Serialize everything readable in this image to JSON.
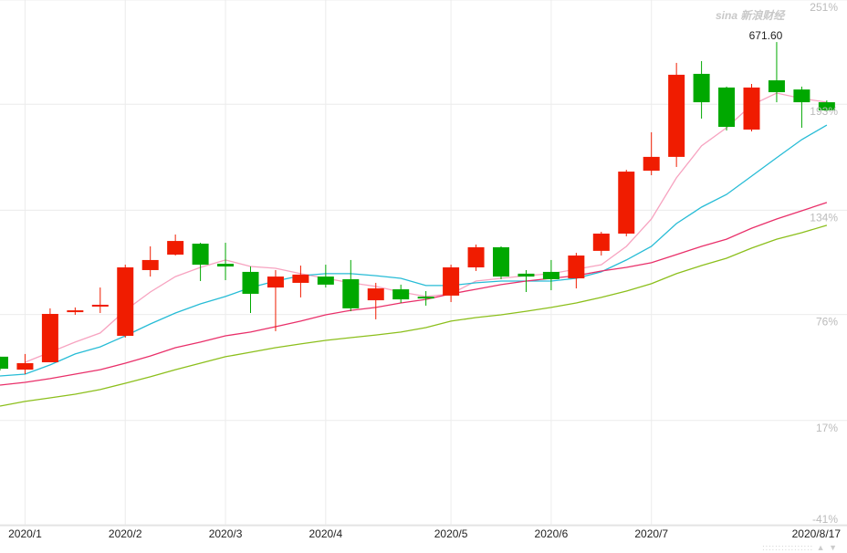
{
  "watermark": "sina 新浪财经",
  "nav_controls": {
    "up": "▲",
    "down": "▼"
  },
  "chart_data": {
    "type": "candlestick",
    "title": "",
    "ylabel": "",
    "ylim": [
      -41,
      251
    ],
    "y_ticks": [
      "251%",
      "193%",
      "134%",
      "76%",
      "17%",
      "-41%"
    ],
    "y_tick_values": [
      251,
      193,
      134,
      76,
      17,
      -41
    ],
    "x_ticks": [
      {
        "label": "2020/1",
        "index": 1
      },
      {
        "label": "2020/2",
        "index": 5
      },
      {
        "label": "2020/3",
        "index": 9
      },
      {
        "label": "2020/4",
        "index": 13
      },
      {
        "label": "2020/5",
        "index": 18
      },
      {
        "label": "2020/6",
        "index": 22
      },
      {
        "label": "2020/7",
        "index": 26
      },
      {
        "label": "2020/8/17",
        "index": 33
      }
    ],
    "colors": {
      "up": "#f01c00",
      "down": "#00a800",
      "ma5": "#f7a3c0",
      "ma10": "#27bcd6",
      "ma20": "#e9306a",
      "ma30": "#8cbf1c",
      "grid": "#ececec"
    },
    "annotation": {
      "text": "671.60",
      "index": 31
    },
    "candles": [
      [
        52.5,
        45.8,
        52.5,
        44.8
      ],
      [
        45.3,
        48.9,
        54.0,
        42.8
      ],
      [
        49.4,
        76.3,
        79.4,
        49.4
      ],
      [
        77.3,
        78.3,
        79.9,
        75.8
      ],
      [
        80.4,
        81.4,
        91.0,
        76.8
      ],
      [
        64.1,
        102.2,
        103.7,
        63.1
      ],
      [
        100.7,
        106.3,
        113.9,
        97.1
      ],
      [
        109.3,
        116.9,
        120.5,
        108.8
      ],
      [
        115.4,
        103.7,
        115.9,
        94.6
      ],
      [
        104.2,
        102.7,
        115.9,
        95.1
      ],
      [
        99.7,
        87.5,
        102.7,
        76.8
      ],
      [
        91.0,
        97.1,
        100.7,
        66.7
      ],
      [
        93.6,
        98.2,
        103.2,
        85.5
      ],
      [
        97.1,
        92.6,
        103.7,
        91.0
      ],
      [
        95.6,
        79.4,
        106.3,
        77.8
      ],
      [
        83.9,
        90.5,
        93.6,
        73.3
      ],
      [
        90.0,
        84.4,
        92.6,
        82.4
      ],
      [
        85.9,
        84.9,
        89.0,
        80.9
      ],
      [
        86.5,
        102.2,
        103.7,
        82.9
      ],
      [
        102.2,
        113.4,
        114.9,
        100.2
      ],
      [
        113.4,
        97.1,
        113.9,
        95.6
      ],
      [
        98.7,
        97.1,
        100.7,
        88.5
      ],
      [
        99.7,
        95.6,
        106.3,
        89.5
      ],
      [
        96.1,
        108.8,
        110.3,
        90.5
      ],
      [
        111.4,
        121.0,
        122.0,
        108.8
      ],
      [
        121.0,
        155.5,
        156.5,
        119.5
      ],
      [
        156.0,
        163.7,
        177.4,
        153.5
      ],
      [
        163.7,
        209.4,
        216.0,
        158.1
      ],
      [
        209.9,
        194.1,
        217.0,
        185.0
      ],
      [
        202.3,
        180.4,
        202.8,
        178.4
      ],
      [
        178.9,
        202.3,
        204.3,
        177.9
      ],
      [
        206.3,
        199.7,
        227.6,
        194.1
      ],
      [
        201.2,
        194.1,
        202.8,
        179.9
      ],
      [
        194.1,
        189.6,
        195.1,
        189.0
      ]
    ],
    "series": [
      {
        "name": "MA5",
        "start": 1,
        "values": [
          49.4,
          55.0,
          60.6,
          65.7,
          78.3,
          88.5,
          97.1,
          102.2,
          106.3,
          102.7,
          101.7,
          98.7,
          96.1,
          93.6,
          91.6,
          88.5,
          86.0,
          87.5,
          94.6,
          96.1,
          97.6,
          98.7,
          101.2,
          103.7,
          113.9,
          129.1,
          152.0,
          169.8,
          179.9,
          192.6,
          199.2,
          196.2,
          194.1
        ]
      },
      {
        "name": "MA10",
        "start": 0,
        "values": [
          41.8,
          42.8,
          47.9,
          54.0,
          58.0,
          64.1,
          70.7,
          76.8,
          81.9,
          86.0,
          91.0,
          94.6,
          97.6,
          98.7,
          98.7,
          97.6,
          96.1,
          92.1,
          92.1,
          93.6,
          94.6,
          94.6,
          94.6,
          96.1,
          99.7,
          106.3,
          113.9,
          126.6,
          135.7,
          142.8,
          153.0,
          163.2,
          173.3,
          181.4
        ]
      },
      {
        "name": "MA20",
        "start": 0,
        "values": [
          36.7,
          38.2,
          40.3,
          42.8,
          45.3,
          48.9,
          52.9,
          57.5,
          60.6,
          64.1,
          66.2,
          69.2,
          72.3,
          75.8,
          78.3,
          79.9,
          82.4,
          84.4,
          87.5,
          90.0,
          92.6,
          94.6,
          96.1,
          97.6,
          100.2,
          102.2,
          104.8,
          109.3,
          113.9,
          117.9,
          124.0,
          129.1,
          133.7,
          138.3
        ]
      },
      {
        "name": "MA30",
        "start": 0,
        "values": [
          25.0,
          27.6,
          29.6,
          31.6,
          34.2,
          37.7,
          41.3,
          45.3,
          48.9,
          52.5,
          55.0,
          57.5,
          59.6,
          61.6,
          63.1,
          64.6,
          66.2,
          68.7,
          72.3,
          74.3,
          75.8,
          77.8,
          79.9,
          82.4,
          85.5,
          89.0,
          93.1,
          98.7,
          103.2,
          107.3,
          112.9,
          117.9,
          121.5,
          125.6
        ]
      }
    ]
  }
}
